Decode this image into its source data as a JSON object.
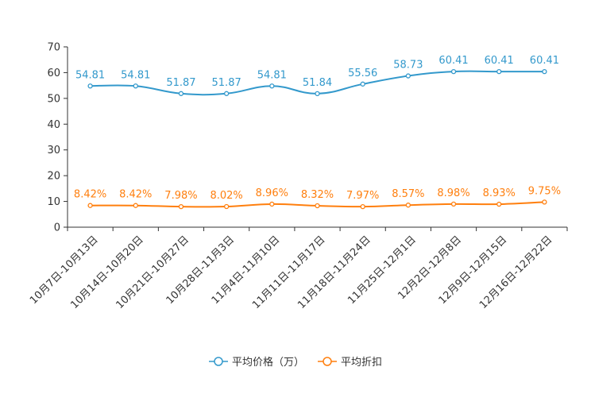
{
  "chart_data": {
    "type": "line",
    "title": "",
    "xlabel": "",
    "ylabel": "",
    "ylim": [
      0,
      70
    ],
    "yticks": [
      0,
      10,
      20,
      30,
      40,
      50,
      60,
      70
    ],
    "grid": false,
    "legend_position": "bottom-center",
    "categories": [
      "10月7日-10月13日",
      "10月14日-10月20日",
      "10月21日-10月27日",
      "10月28日-11月3日",
      "11月4日-11月10日",
      "11月11日-11月17日",
      "11月18日-11月24日",
      "11月25日-12月1日",
      "12月2日-12月8日",
      "12月9日-12月15日",
      "12月16日-12月22日"
    ],
    "series": [
      {
        "name": "平均价格（万）",
        "color": "#3399cc",
        "values": [
          54.81,
          54.81,
          51.87,
          51.87,
          54.81,
          51.84,
          55.56,
          58.73,
          60.41,
          60.41,
          60.41
        ],
        "labels": [
          "54.81",
          "54.81",
          "51.87",
          "51.87",
          "54.81",
          "51.84",
          "55.56",
          "58.73",
          "60.41",
          "60.41",
          "60.41"
        ]
      },
      {
        "name": "平均折扣",
        "color": "#ff7f0e",
        "values": [
          8.42,
          8.42,
          7.98,
          8.02,
          8.96,
          8.32,
          7.97,
          8.57,
          8.98,
          8.93,
          9.75
        ],
        "labels": [
          "8.42%",
          "8.42%",
          "7.98%",
          "8.02%",
          "8.96%",
          "8.32%",
          "7.97%",
          "8.57%",
          "8.98%",
          "8.93%",
          "9.75%"
        ]
      }
    ]
  }
}
